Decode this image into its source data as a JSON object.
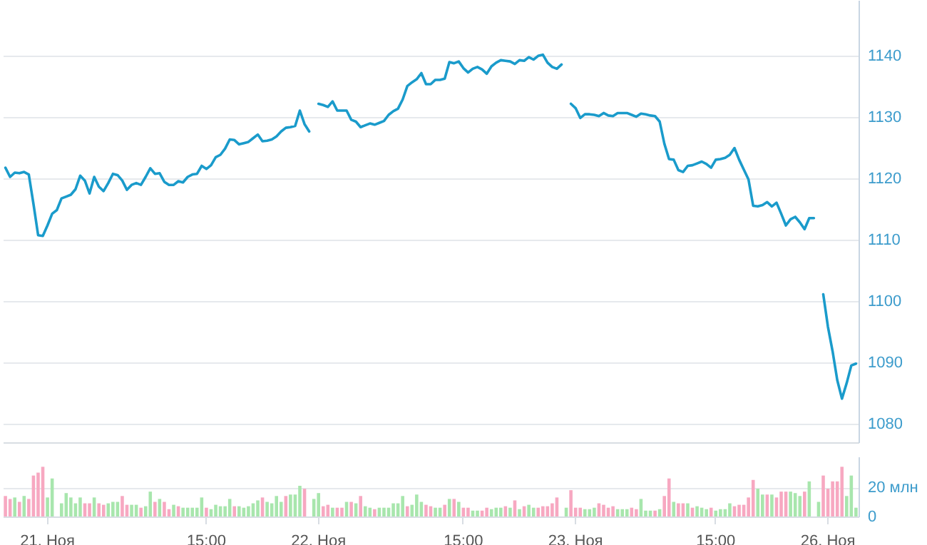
{
  "chart_data": [
    {
      "type": "line",
      "color": "#1a9bcb",
      "grid": "y",
      "categories": [
        null,
        null,
        null,
        null,
        null,
        null,
        null,
        null,
        null,
        null,
        null,
        null,
        null,
        null,
        null,
        null,
        null,
        null,
        null,
        null,
        null,
        null,
        null,
        null,
        null,
        null,
        null,
        null,
        null,
        null,
        null,
        null,
        null,
        null,
        null,
        null,
        null,
        null,
        null,
        null,
        null,
        null,
        null,
        null,
        null,
        null,
        null,
        null,
        null,
        null,
        null,
        null,
        null,
        null,
        null,
        null,
        null,
        null,
        null,
        null,
        null,
        null,
        null,
        null,
        null,
        null,
        null,
        null,
        null,
        null,
        null,
        null,
        null,
        null,
        null,
        null,
        null,
        null,
        null,
        null,
        null,
        null,
        null,
        null,
        null,
        null,
        null,
        null,
        null,
        null,
        null,
        null,
        null,
        null,
        null,
        null,
        null,
        null,
        null,
        null,
        null,
        null,
        null,
        null,
        null,
        null,
        null,
        null,
        null,
        null,
        null,
        null,
        null,
        null,
        null,
        null,
        null,
        null,
        null,
        null,
        null,
        null,
        null,
        null,
        null,
        null,
        null,
        null,
        null,
        null,
        null,
        null,
        null,
        null,
        null,
        null,
        null,
        null,
        null,
        null,
        null,
        null,
        null,
        null,
        null,
        null,
        null,
        null,
        null,
        null,
        null,
        null,
        null,
        null,
        null,
        null,
        null,
        null,
        null,
        null,
        null,
        null,
        null,
        null,
        null,
        null,
        null,
        null,
        null,
        null,
        null,
        null,
        null,
        null,
        null,
        null,
        null,
        null,
        null,
        null,
        null,
        null,
        null
      ],
      "ylim": [
        1077,
        1149
      ],
      "yticks": [
        1080,
        1090,
        1100,
        1110,
        1120,
        1130,
        1140
      ],
      "values": [
        1121.7,
        1120.2,
        1120.9,
        1120.8,
        1121.0,
        1120.6,
        1115.8,
        1110.7,
        1110.6,
        1112.3,
        1114.2,
        1114.8,
        1116.7,
        1117,
        1117.3,
        1118.2,
        1120.4,
        1119.6,
        1117.5,
        1120.2,
        1118.6,
        1117.9,
        1119.2,
        1120.7,
        1120.5,
        1119.6,
        1118.1,
        1118.9,
        1119.2,
        1118.9,
        1120.2,
        1121.6,
        1120.7,
        1120.8,
        1119.4,
        1118.9,
        1118.9,
        1119.5,
        1119.3,
        1120.2,
        1120.6,
        1120.7,
        1122.0,
        1121.5,
        1122.1,
        1123.4,
        1123.8,
        1124.8,
        1126.3,
        1126.2,
        1125.5,
        1125.7,
        1125.9,
        1126.5,
        1127.1,
        1126.0,
        1126.1,
        1126.3,
        1126.8,
        1127.6,
        1128.2,
        1128.3,
        1128.5,
        1131.0,
        1128.8,
        1127.6,
        null,
        1132.1,
        1131.9,
        1131.6,
        1132.5,
        1131.0,
        1131.0,
        1131.0,
        1129.5,
        1129.2,
        1128.3,
        1128.6,
        1128.9,
        1128.7,
        1129.0,
        1129.3,
        1130.3,
        1130.9,
        1131.3,
        1132.8,
        1135.0,
        1135.6,
        1136.1,
        1137.1,
        1135.3,
        1135.3,
        1136.0,
        1136.0,
        1136.2,
        1138.9,
        1138.7,
        1139.0,
        1137.9,
        1137.2,
        1137.8,
        1138.1,
        1137.7,
        1137.0,
        1138.2,
        1138.8,
        1139.2,
        1139.1,
        1139.0,
        1138.6,
        1139.2,
        1139.1,
        1139.7,
        1139.3,
        1139.9,
        1140.1,
        1138.8,
        1138.1,
        1137.8,
        1138.5,
        null,
        1132.1,
        1131.4,
        1129.8,
        1130.4,
        1130.4,
        1130.3,
        1130.1,
        1130.6,
        1130.2,
        1130.1,
        1130.6,
        1130.6,
        1130.6,
        1130.3,
        1130.0,
        1130.5,
        1130.4,
        1130.2,
        1130.1,
        1129.2,
        1125.6,
        1123.1,
        1123.0,
        1121.3,
        1121.0,
        1122.0,
        1122.1,
        1122.4,
        1122.7,
        1122.3,
        1121.7,
        1123.0,
        1123.1,
        1123.3,
        1123.8,
        1124.9,
        1123.0,
        1121.4,
        1119.8,
        1115.5,
        1115.4,
        1115.6,
        1116.1,
        1115.4,
        1116.0,
        1114.2,
        1112.3,
        1113.3,
        1113.7,
        1112.8,
        1111.7,
        1113.5,
        1113.5,
        null,
        1101.1,
        1095.8,
        1091.8,
        1087.1,
        1084.1,
        1086.6,
        1089.5,
        1089.8
      ]
    },
    {
      "type": "bar",
      "grid": "y",
      "categories": [
        null,
        null,
        null,
        null,
        null,
        null,
        null,
        null,
        null,
        "21. Ноя",
        null,
        null,
        null,
        null,
        null,
        null,
        null,
        null,
        null,
        null,
        null,
        null,
        null,
        null,
        null,
        null,
        null,
        null,
        null,
        null,
        null,
        null,
        null,
        null,
        null,
        null,
        null,
        null,
        null,
        null,
        null,
        null,
        null,
        "15:00",
        null,
        null,
        null,
        null,
        null,
        null,
        null,
        null,
        null,
        null,
        null,
        null,
        null,
        null,
        null,
        null,
        null,
        null,
        null,
        null,
        null,
        null,
        null,
        "22. Ноя",
        null,
        null,
        null,
        null,
        null,
        null,
        null,
        null,
        null,
        null,
        null,
        null,
        null,
        null,
        null,
        null,
        null,
        null,
        null,
        null,
        null,
        null,
        null,
        null,
        null,
        null,
        null,
        null,
        null,
        null,
        "15:00",
        null,
        null,
        null,
        null,
        null,
        null,
        null,
        null,
        null,
        null,
        null,
        null,
        null,
        null,
        null,
        null,
        null,
        null,
        null,
        null,
        null,
        null,
        null,
        "23. Ноя",
        null,
        null,
        null,
        null,
        null,
        null,
        null,
        null,
        null,
        null,
        null,
        null,
        null,
        null,
        null,
        null,
        null,
        null,
        null,
        null,
        null,
        null,
        null,
        null,
        null,
        null,
        null,
        null,
        null,
        "15:00",
        null,
        null,
        null,
        null,
        null,
        null,
        null,
        null,
        null,
        null,
        null,
        null,
        null,
        null,
        null,
        null,
        null,
        null,
        null,
        null,
        null,
        null,
        null,
        "26. Ноя",
        null,
        null,
        null,
        null,
        null,
        null
      ],
      "ylim": [
        0,
        41
      ],
      "yticks": [
        0,
        {
          "value": 20,
          "label": "20 млн"
        }
      ],
      "values": [
        14,
        12,
        13,
        10,
        14,
        12,
        28,
        30,
        34,
        13,
        26,
        null,
        9,
        16,
        13,
        9,
        13,
        9,
        9,
        13,
        9,
        8,
        9,
        10,
        10,
        14,
        8,
        8,
        8,
        6,
        7,
        17,
        10,
        12,
        10,
        5,
        8,
        7,
        6,
        6,
        6,
        6,
        13,
        6,
        5,
        8,
        7,
        7,
        12,
        7,
        7,
        6,
        7,
        9,
        11,
        13,
        10,
        9,
        14,
        10,
        14,
        15,
        15,
        21,
        19,
        null,
        12,
        16,
        7,
        8,
        6,
        6,
        6,
        10,
        10,
        9,
        14,
        7,
        6,
        5,
        6,
        6,
        6,
        9,
        9,
        14,
        7,
        8,
        15,
        10,
        8,
        7,
        6,
        6,
        8,
        12,
        12,
        10,
        6,
        6,
        4,
        4,
        4,
        6,
        5,
        6,
        6,
        7,
        6,
        11,
        5,
        7,
        8,
        6,
        6,
        7,
        7,
        9,
        13,
        null,
        6,
        18,
        6,
        6,
        5,
        5,
        6,
        9,
        8,
        6,
        7,
        5,
        5,
        5,
        6,
        5,
        12,
        4,
        4,
        4,
        5,
        14,
        26,
        10,
        9,
        9,
        9,
        6,
        7,
        6,
        5,
        6,
        4,
        5,
        5,
        9,
        7,
        8,
        8,
        13,
        25,
        19,
        15,
        15,
        15,
        13,
        17,
        17,
        17,
        16,
        14,
        17,
        24,
        null,
        10,
        28,
        19,
        24,
        24,
        34,
        14,
        28,
        6
      ],
      "colors": [
        "#f7a8c1",
        "#f7a8c1",
        "#a8e6ad",
        "#f7a8c1",
        "#a8e6ad",
        "#f7a8c1",
        "#f7a8c1",
        "#f7a8c1",
        "#f7a8c1",
        "#a8e6ad",
        "#a8e6ad",
        null,
        "#a8e6ad",
        "#a8e6ad",
        "#a8e6ad",
        "#a8e6ad",
        "#a8e6ad",
        "#f7a8c1",
        "#f7a8c1",
        "#a8e6ad",
        "#f7a8c1",
        "#f7a8c1",
        "#a8e6ad",
        "#a8e6ad",
        "#a8e6ad",
        "#f7a8c1",
        "#f7a8c1",
        "#a8e6ad",
        "#a8e6ad",
        "#f7a8c1",
        "#a8e6ad",
        "#a8e6ad",
        "#f7a8c1",
        "#a8e6ad",
        "#f7a8c1",
        "#f7a8c1",
        "#a8e6ad",
        "#f7a8c1",
        "#a8e6ad",
        "#a8e6ad",
        "#a8e6ad",
        "#a8e6ad",
        "#a8e6ad",
        "#f7a8c1",
        "#a8e6ad",
        "#a8e6ad",
        "#a8e6ad",
        "#a8e6ad",
        "#a8e6ad",
        "#f7a8c1",
        "#a8e6ad",
        "#a8e6ad",
        "#a8e6ad",
        "#a8e6ad",
        "#a8e6ad",
        "#f7a8c1",
        "#a8e6ad",
        "#a8e6ad",
        "#a8e6ad",
        "#a8e6ad",
        "#f7a8c1",
        "#a8e6ad",
        "#a8e6ad",
        "#a8e6ad",
        "#f7a8c1",
        null,
        "#a8e6ad",
        "#a8e6ad",
        "#f7a8c1",
        "#f7a8c1",
        "#a8e6ad",
        "#f7a8c1",
        "#f7a8c1",
        "#a8e6ad",
        "#f7a8c1",
        "#a8e6ad",
        "#f7a8c1",
        "#a8e6ad",
        "#a8e6ad",
        "#f7a8c1",
        "#a8e6ad",
        "#a8e6ad",
        "#a8e6ad",
        "#a8e6ad",
        "#a8e6ad",
        "#a8e6ad",
        "#f7a8c1",
        "#a8e6ad",
        "#a8e6ad",
        "#a8e6ad",
        "#f7a8c1",
        "#f7a8c1",
        "#a8e6ad",
        "#a8e6ad",
        "#f7a8c1",
        "#a8e6ad",
        "#f7a8c1",
        "#a8e6ad",
        "#f7a8c1",
        "#f7a8c1",
        "#a8e6ad",
        "#a8e6ad",
        "#f7a8c1",
        "#f7a8c1",
        "#a8e6ad",
        "#a8e6ad",
        "#a8e6ad",
        "#f7a8c1",
        "#a8e6ad",
        "#f7a8c1",
        "#a8e6ad",
        "#f7a8c1",
        "#a8e6ad",
        "#a8e6ad",
        "#f7a8c1",
        "#f7a8c1",
        "#f7a8c1",
        "#f7a8c1",
        "#f7a8c1",
        null,
        "#a8e6ad",
        "#f7a8c1",
        "#f7a8c1",
        "#f7a8c1",
        "#a8e6ad",
        "#a8e6ad",
        "#a8e6ad",
        "#f7a8c1",
        "#f7a8c1",
        "#f7a8c1",
        "#f7a8c1",
        "#a8e6ad",
        "#a8e6ad",
        "#a8e6ad",
        "#f7a8c1",
        "#f7a8c1",
        "#a8e6ad",
        "#a8e6ad",
        "#a8e6ad",
        "#f7a8c1",
        "#a8e6ad",
        "#f7a8c1",
        "#f7a8c1",
        "#a8e6ad",
        "#f7a8c1",
        "#f7a8c1",
        "#a8e6ad",
        "#f7a8c1",
        "#a8e6ad",
        "#a8e6ad",
        "#a8e6ad",
        "#f7a8c1",
        "#a8e6ad",
        "#a8e6ad",
        "#a8e6ad",
        "#a8e6ad",
        "#f7a8c1",
        "#f7a8c1",
        "#f7a8c1",
        "#f7a8c1",
        "#f7a8c1",
        "#a8e6ad",
        "#a8e6ad",
        "#f7a8c1",
        "#a8e6ad",
        "#f7a8c1",
        "#f7a8c1",
        "#f7a8c1",
        "#a8e6ad",
        "#a8e6ad",
        "#a8e6ad",
        "#f7a8c1",
        "#a8e6ad",
        null,
        "#a8e6ad",
        "#f7a8c1",
        "#f7a8c1",
        "#f7a8c1",
        "#f7a8c1",
        "#f7a8c1",
        "#a8e6ad",
        "#a8e6ad",
        "#a8e6ad"
      ]
    }
  ]
}
